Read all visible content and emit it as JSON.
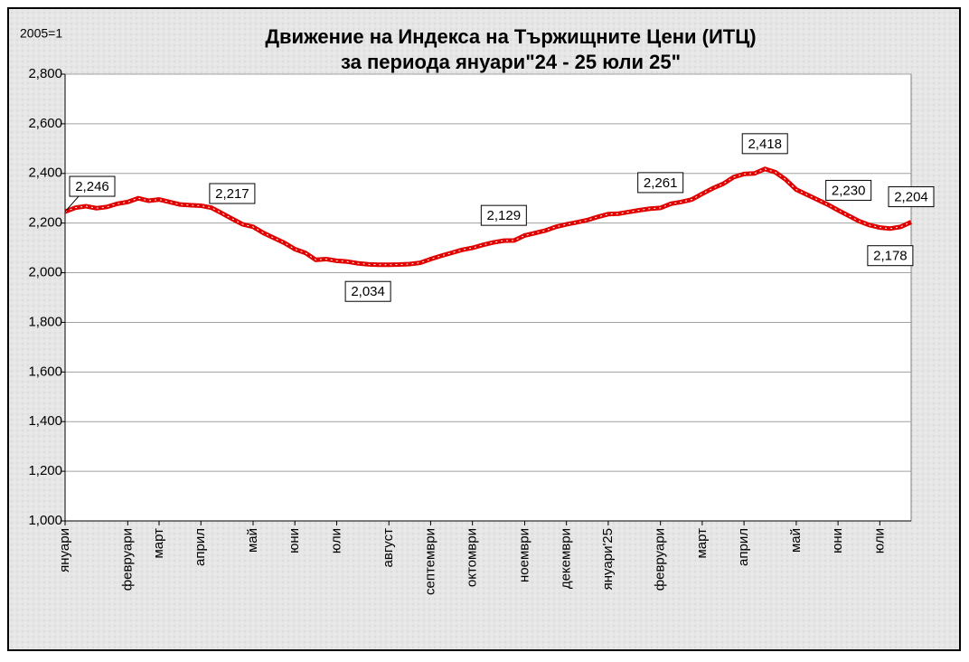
{
  "chart_data": {
    "type": "line",
    "title": "Движение на Индекса на Тържищните Цени (ИТЦ)",
    "subtitle": "за периода януари\"24  - 25 юли 25\"",
    "y_label": "2005=1",
    "categories": [
      "януари",
      null,
      null,
      null,
      null,
      null,
      "февруари",
      null,
      null,
      "март",
      null,
      null,
      null,
      "април",
      null,
      null,
      null,
      null,
      "май",
      null,
      null,
      null,
      "юни",
      null,
      null,
      null,
      "юли",
      null,
      null,
      null,
      null,
      "август",
      null,
      null,
      null,
      "септември",
      null,
      null,
      null,
      "октомври",
      null,
      null,
      null,
      null,
      "ноември",
      null,
      null,
      null,
      "декември",
      null,
      null,
      null,
      "януари'25",
      null,
      null,
      null,
      null,
      "февруари",
      null,
      null,
      null,
      "март",
      null,
      null,
      null,
      "април",
      null,
      null,
      null,
      null,
      "май",
      null,
      null,
      null,
      "юни",
      null,
      null,
      null,
      "юли",
      null,
      null,
      null
    ],
    "series": [
      {
        "name": "ИТЦ",
        "color": "#e00000",
        "values": [
          2246,
          2262,
          2268,
          2260,
          2265,
          2278,
          2285,
          2300,
          2290,
          2295,
          2285,
          2275,
          2272,
          2270,
          2262,
          2240,
          2217,
          2195,
          2185,
          2160,
          2140,
          2120,
          2095,
          2080,
          2052,
          2055,
          2048,
          2045,
          2038,
          2034,
          2032,
          2032,
          2033,
          2035,
          2040,
          2055,
          2068,
          2080,
          2092,
          2100,
          2112,
          2122,
          2129,
          2130,
          2150,
          2160,
          2170,
          2185,
          2195,
          2203,
          2212,
          2225,
          2236,
          2238,
          2245,
          2252,
          2258,
          2261,
          2278,
          2285,
          2295,
          2318,
          2340,
          2358,
          2385,
          2398,
          2400,
          2418,
          2405,
          2375,
          2335,
          2315,
          2295,
          2275,
          2252,
          2230,
          2208,
          2192,
          2182,
          2178,
          2185,
          2204
        ],
        "value_labels": [
          "2,246",
          null,
          null,
          null,
          null,
          null,
          null,
          null,
          null,
          null,
          null,
          null,
          null,
          null,
          null,
          null,
          "2,217",
          null,
          null,
          null,
          null,
          null,
          null,
          null,
          null,
          null,
          null,
          null,
          null,
          "2,034",
          null,
          null,
          null,
          null,
          null,
          null,
          null,
          null,
          null,
          null,
          null,
          null,
          "2,129",
          null,
          null,
          null,
          null,
          null,
          null,
          null,
          null,
          null,
          null,
          null,
          null,
          null,
          null,
          "2,261",
          null,
          null,
          null,
          null,
          null,
          null,
          null,
          null,
          null,
          "2,418",
          null,
          null,
          null,
          null,
          null,
          null,
          null,
          "2,230",
          null,
          null,
          null,
          "2,178",
          null,
          "2,204"
        ]
      }
    ],
    "ylim": [
      1000,
      2800
    ],
    "yticks": [
      {
        "value": 1000,
        "label": "1,000"
      },
      {
        "value": 1200,
        "label": "1,200"
      },
      {
        "value": 1400,
        "label": "1,400"
      },
      {
        "value": 1600,
        "label": "1,600"
      },
      {
        "value": 1800,
        "label": "1,800"
      },
      {
        "value": 2000,
        "label": "2,000"
      },
      {
        "value": 2200,
        "label": "2,200"
      },
      {
        "value": 2400,
        "label": "2,400"
      },
      {
        "value": 2600,
        "label": "2,600"
      },
      {
        "value": 2800,
        "label": "2,800"
      }
    ],
    "grid": true
  }
}
